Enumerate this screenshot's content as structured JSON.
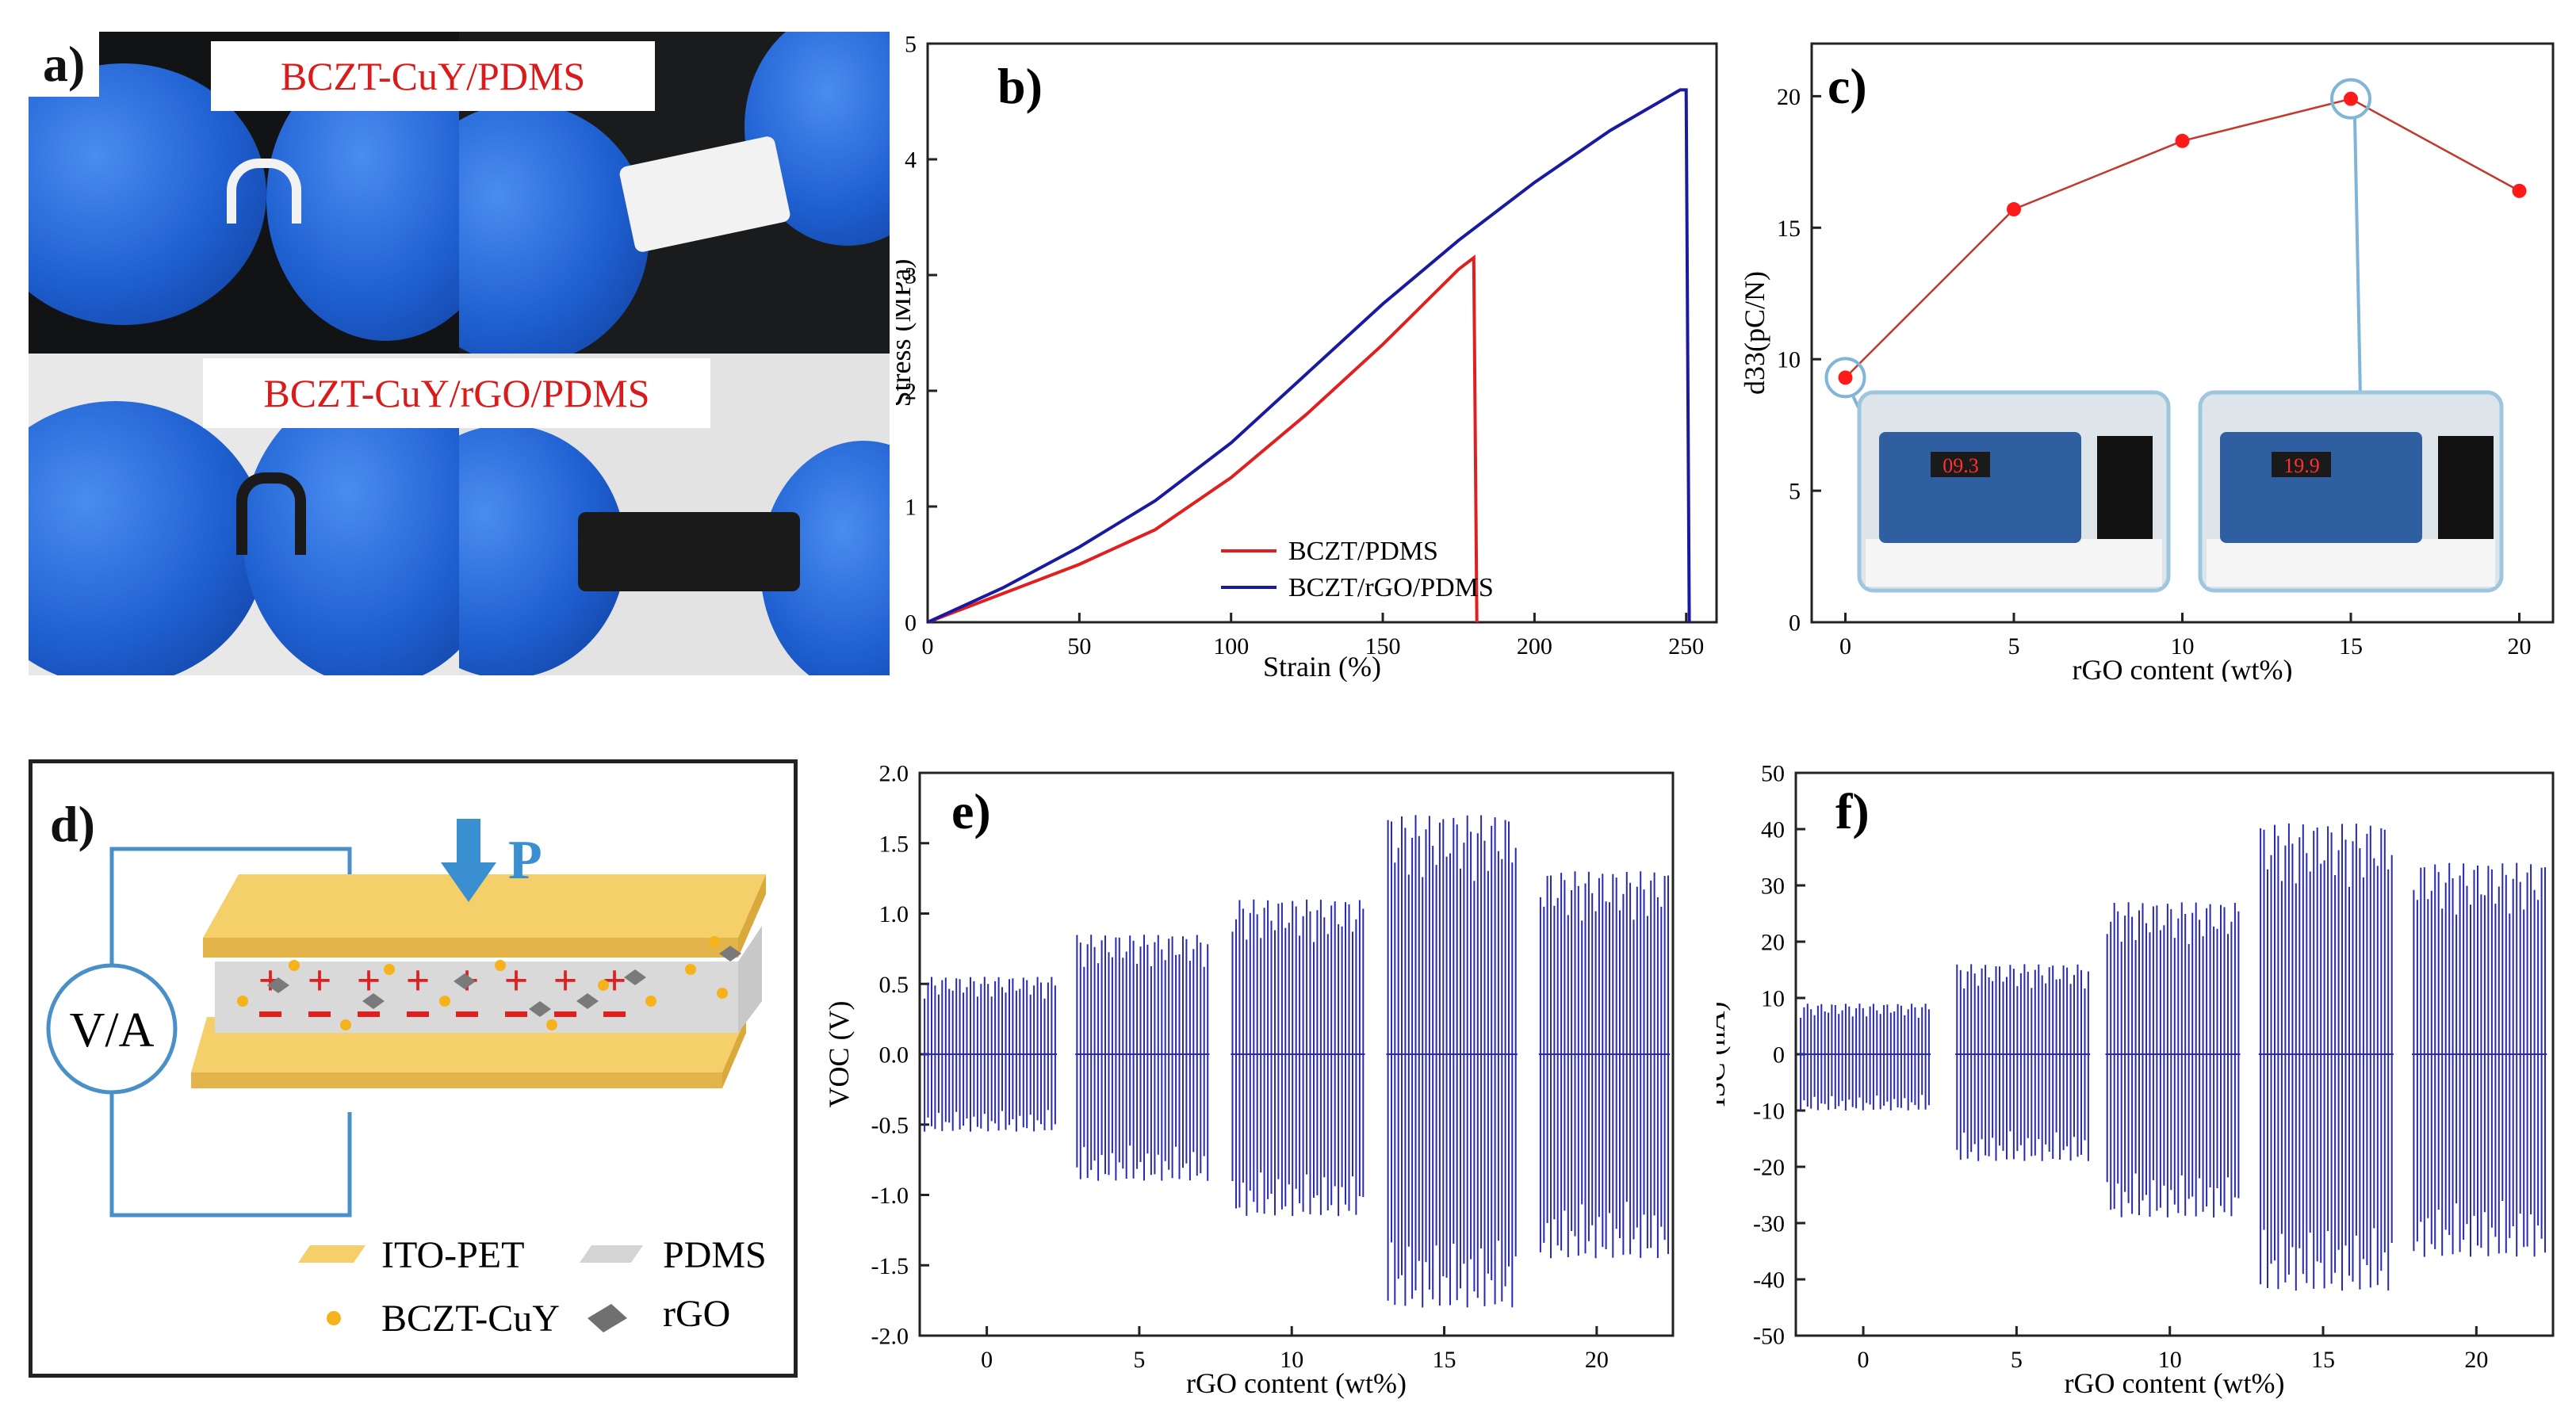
{
  "panels": {
    "a": {
      "label": "a)",
      "captions": [
        "BCZT-CuY/PDMS",
        "BCZT-CuY/rGO/PDMS"
      ],
      "photo_description_colors": {
        "glove": "#1e5fd0",
        "sample_white": "#f2f2f2",
        "sample_black": "#1a1a1a"
      }
    },
    "b": {
      "label": "b)"
    },
    "c": {
      "label": "c)",
      "meter_readings": [
        "09.3",
        "19.9"
      ]
    },
    "d": {
      "label": "d)",
      "meter": "V/A",
      "force": "P",
      "legend": [
        {
          "name": "ITO-PET",
          "color": "#f5cf6a"
        },
        {
          "name": "PDMS",
          "color": "#d4d4d4"
        },
        {
          "name": "BCZT-CuY",
          "color": "#f5b21a"
        },
        {
          "name": "rGO",
          "color": "#707070"
        }
      ]
    },
    "e": {
      "label": "e)"
    },
    "f": {
      "label": "f)"
    }
  },
  "chart_data": [
    {
      "id": "b",
      "type": "line",
      "xlabel": "Strain (%)",
      "ylabel": "Stress (MPa)",
      "xlim": [
        0,
        260
      ],
      "ylim": [
        0,
        5
      ],
      "xticks": [
        0,
        50,
        100,
        150,
        200,
        250
      ],
      "yticks": [
        0,
        1,
        2,
        3,
        4,
        5
      ],
      "series": [
        {
          "name": "BCZT/PDMS",
          "color": "#e02020",
          "x": [
            0,
            25,
            50,
            75,
            100,
            125,
            150,
            175,
            180,
            181
          ],
          "y": [
            0,
            0.25,
            0.5,
            0.8,
            1.25,
            1.8,
            2.4,
            3.05,
            3.15,
            0
          ]
        },
        {
          "name": "BCZT/rGO/PDMS",
          "color": "#1a1aa0",
          "x": [
            0,
            25,
            50,
            75,
            100,
            125,
            150,
            175,
            200,
            225,
            248,
            250,
            251
          ],
          "y": [
            0,
            0.3,
            0.65,
            1.05,
            1.55,
            2.15,
            2.75,
            3.3,
            3.8,
            4.25,
            4.6,
            4.6,
            0
          ]
        }
      ]
    },
    {
      "id": "c",
      "type": "line",
      "xlabel": "rGO content (wt%)",
      "ylabel": "d33(pC/N)",
      "xlim": [
        -1,
        21
      ],
      "ylim": [
        0,
        22
      ],
      "xticks": [
        0,
        5,
        10,
        15,
        20
      ],
      "yticks": [
        0,
        5,
        10,
        15,
        20
      ],
      "series": [
        {
          "name": "d33",
          "color": "#c0392b",
          "marker_color": "#ff1a1a",
          "x": [
            0,
            5,
            10,
            15,
            20
          ],
          "y": [
            9.3,
            15.7,
            18.3,
            19.9,
            16.4
          ]
        }
      ]
    },
    {
      "id": "e",
      "type": "line",
      "xlabel": "rGO content (wt%)",
      "ylabel": "VOC (V)",
      "xlim": [
        -2.2,
        22.5
      ],
      "ylim": [
        -2.0,
        2.0
      ],
      "xticks": [
        0,
        5,
        10,
        15,
        20
      ],
      "yticks": [
        -2.0,
        -1.5,
        -1.0,
        -0.5,
        0.0,
        0.5,
        1.0,
        1.5,
        2.0
      ],
      "ytick_labels": [
        "-2.0",
        "-1.5",
        "-1.0",
        "-0.5",
        "0.0",
        "0.5",
        "1.0",
        "1.5",
        "2.0"
      ],
      "color": "#2a2ab0",
      "groups": [
        {
          "rGO": 0,
          "x_start": -2.1,
          "x_end": 2.3,
          "amp_pos": 0.55,
          "amp_neg": -0.55
        },
        {
          "rGO": 5,
          "x_start": 2.9,
          "x_end": 7.3,
          "amp_pos": 0.85,
          "amp_neg": -0.9
        },
        {
          "rGO": 10,
          "x_start": 8.0,
          "x_end": 12.4,
          "amp_pos": 1.1,
          "amp_neg": -1.15
        },
        {
          "rGO": 15,
          "x_start": 13.1,
          "x_end": 17.4,
          "amp_pos": 1.7,
          "amp_neg": -1.8
        },
        {
          "rGO": 20,
          "x_start": 18.1,
          "x_end": 22.4,
          "amp_pos": 1.3,
          "amp_neg": -1.45
        }
      ]
    },
    {
      "id": "f",
      "type": "line",
      "xlabel": "rGO content (wt%)",
      "ylabel": "ISC (nA)",
      "xlim": [
        -2.2,
        22.5
      ],
      "ylim": [
        -50,
        50
      ],
      "xticks": [
        0,
        5,
        10,
        15,
        20
      ],
      "yticks": [
        -50,
        -40,
        -30,
        -20,
        -10,
        0,
        10,
        20,
        30,
        40,
        50
      ],
      "color": "#2a2ab0",
      "groups": [
        {
          "rGO": 0,
          "x_start": -2.1,
          "x_end": 2.2,
          "amp_pos": 9,
          "amp_neg": -10
        },
        {
          "rGO": 5,
          "x_start": 3.0,
          "x_end": 7.4,
          "amp_pos": 16,
          "amp_neg": -19
        },
        {
          "rGO": 10,
          "x_start": 7.9,
          "x_end": 12.3,
          "amp_pos": 27,
          "amp_neg": -29
        },
        {
          "rGO": 15,
          "x_start": 12.9,
          "x_end": 17.3,
          "amp_pos": 41,
          "amp_neg": -42
        },
        {
          "rGO": 20,
          "x_start": 17.9,
          "x_end": 22.3,
          "amp_pos": 34,
          "amp_neg": -36
        }
      ]
    }
  ]
}
